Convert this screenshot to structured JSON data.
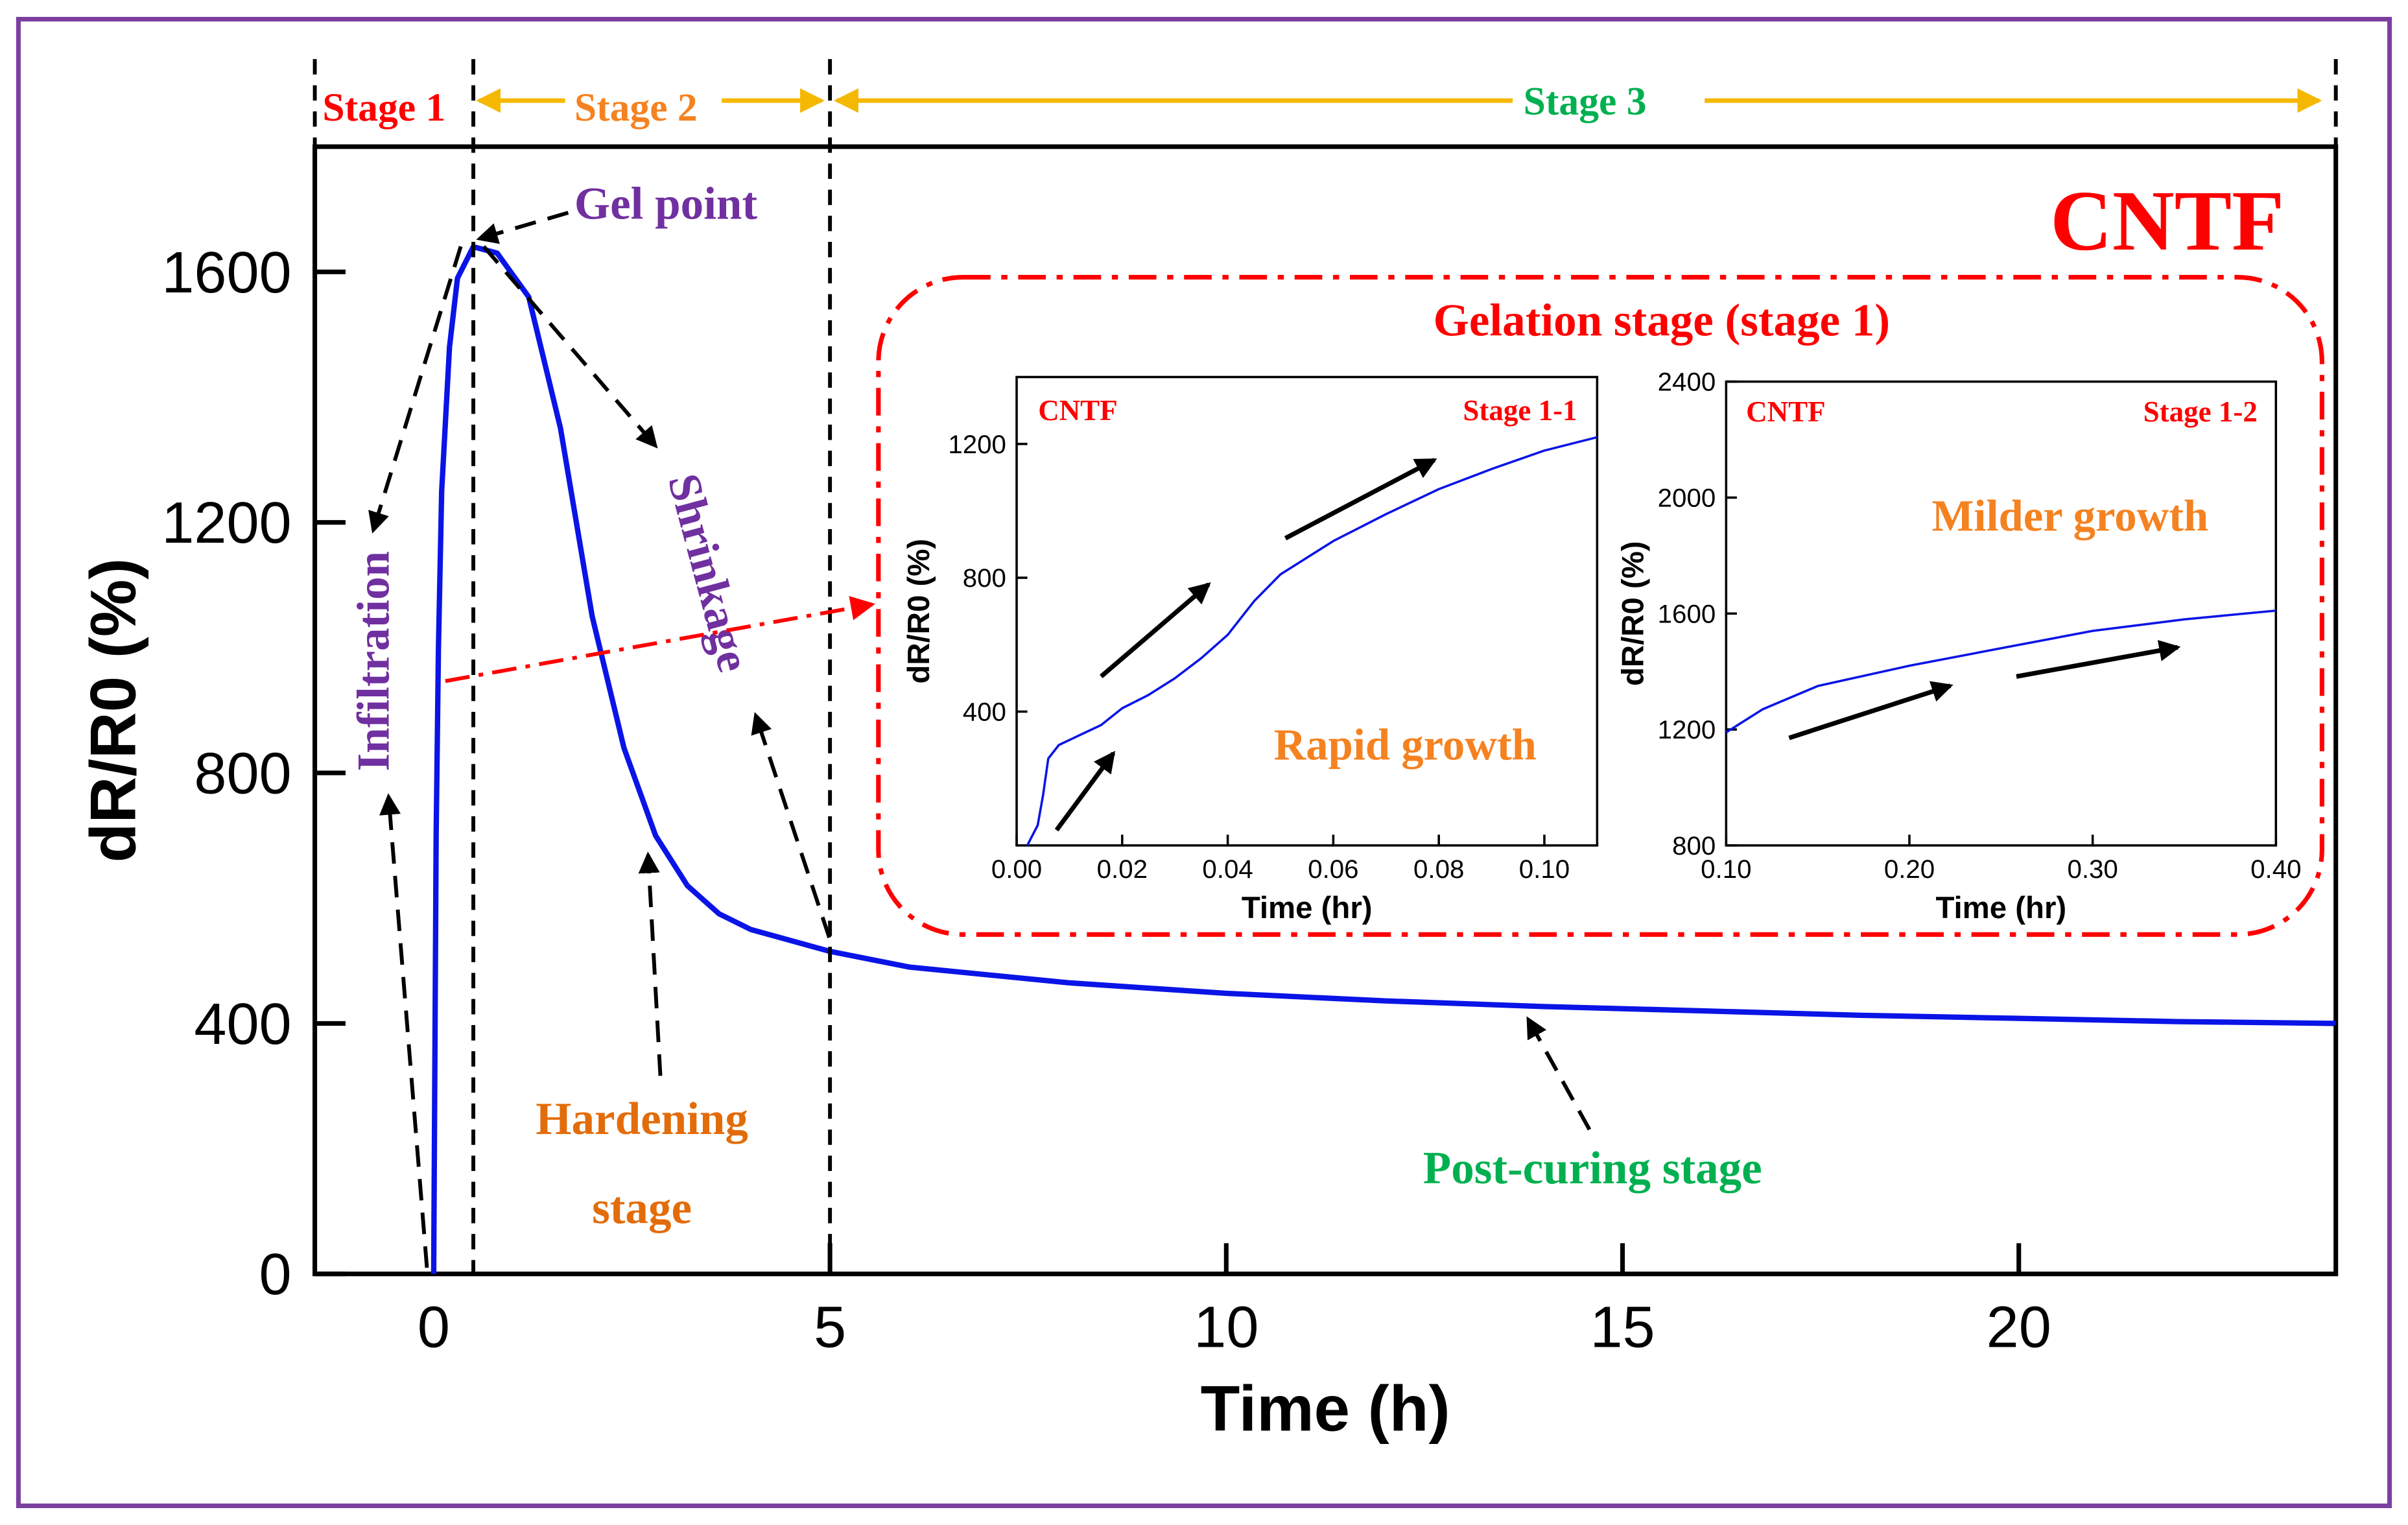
{
  "colors": {
    "frame": "#7b3fa0",
    "curve": "#0a14e6",
    "red": "#ff0000",
    "orange": "#f58220",
    "amber": "#f5b800",
    "green": "#00b050",
    "purple": "#7030a0",
    "hard": "#e36c0a",
    "black": "#000000"
  },
  "stages": {
    "stage1": "Stage 1",
    "stage2": "Stage 2",
    "stage3": "Stage 3"
  },
  "annotations": {
    "cntf": "CNTF",
    "gel_point": "Gel point",
    "infiltration": "Infiltration",
    "shrinkage": "Shrinkage",
    "hardening1": "Hardening",
    "hardening2": "stage",
    "post_curing": "Post-curing stage",
    "gelation": "Gelation stage (stage 1)"
  },
  "chart_data": [
    {
      "type": "line",
      "title": "CNTF",
      "xlabel": "Time (h)",
      "ylabel": "dR/R0 (%)",
      "xlim": [
        -1.5,
        24
      ],
      "ylim": [
        0,
        1800
      ],
      "xticks": [
        0,
        5,
        10,
        15,
        20
      ],
      "yticks": [
        0,
        400,
        800,
        1200,
        1600
      ],
      "xtick_labels": [
        "0",
        "5",
        "10",
        "15",
        "20"
      ],
      "ytick_labels": [
        "0",
        "400",
        "800",
        "1200",
        "1600"
      ],
      "stage_boundaries": [
        -1.5,
        0.5,
        5,
        24
      ],
      "series": [
        {
          "name": "CNTF",
          "x": [
            0,
            0.03,
            0.06,
            0.1,
            0.2,
            0.3,
            0.5,
            0.8,
            1.2,
            1.6,
            2.0,
            2.4,
            2.8,
            3.2,
            3.6,
            4,
            5,
            6,
            8,
            10,
            12,
            14,
            16,
            18,
            20,
            22,
            24
          ],
          "y": [
            0,
            700,
            1000,
            1250,
            1480,
            1590,
            1640,
            1630,
            1560,
            1350,
            1050,
            840,
            700,
            620,
            575,
            550,
            515,
            490,
            465,
            448,
            436,
            427,
            420,
            413,
            408,
            403,
            400
          ]
        }
      ]
    },
    {
      "type": "line",
      "title": "Stage 1-1",
      "label": "CNTF",
      "annotation": "Rapid growth",
      "xlabel": "Time (hr)",
      "ylabel": "dR/R0 (%)",
      "xlim": [
        0,
        0.11
      ],
      "ylim": [
        0,
        1400
      ],
      "xticks": [
        0,
        0.02,
        0.04,
        0.06,
        0.08,
        0.1
      ],
      "yticks": [
        400,
        800,
        1200
      ],
      "xtick_labels": [
        "0.00",
        "0.02",
        "0.04",
        "0.06",
        "0.08",
        "0.10"
      ],
      "ytick_labels": [
        "400",
        "800",
        "1200"
      ],
      "series": [
        {
          "name": "CNTF",
          "x": [
            0.002,
            0.004,
            0.005,
            0.006,
            0.008,
            0.012,
            0.016,
            0.02,
            0.025,
            0.03,
            0.035,
            0.04,
            0.045,
            0.05,
            0.06,
            0.07,
            0.08,
            0.09,
            0.1,
            0.11
          ],
          "y": [
            0,
            60,
            150,
            260,
            300,
            330,
            360,
            410,
            450,
            500,
            560,
            630,
            730,
            810,
            910,
            990,
            1065,
            1125,
            1180,
            1220
          ]
        }
      ]
    },
    {
      "type": "line",
      "title": "Stage 1-2",
      "label": "CNTF",
      "annotation": "Milder growth",
      "xlabel": "Time (hr)",
      "ylabel": "dR/R0 (%)",
      "xlim": [
        0.1,
        0.4
      ],
      "ylim": [
        800,
        2400
      ],
      "xticks": [
        0.1,
        0.2,
        0.3,
        0.4
      ],
      "yticks": [
        800,
        1200,
        1600,
        2000,
        2400
      ],
      "xtick_labels": [
        "0.10",
        "0.20",
        "0.30",
        "0.40"
      ],
      "ytick_labels": [
        "800",
        "1200",
        "1600",
        "2000",
        "2400"
      ],
      "series": [
        {
          "name": "CNTF",
          "x": [
            0.1,
            0.12,
            0.15,
            0.2,
            0.25,
            0.3,
            0.35,
            0.4
          ],
          "y": [
            1190,
            1270,
            1350,
            1420,
            1480,
            1540,
            1580,
            1610
          ]
        }
      ]
    }
  ]
}
